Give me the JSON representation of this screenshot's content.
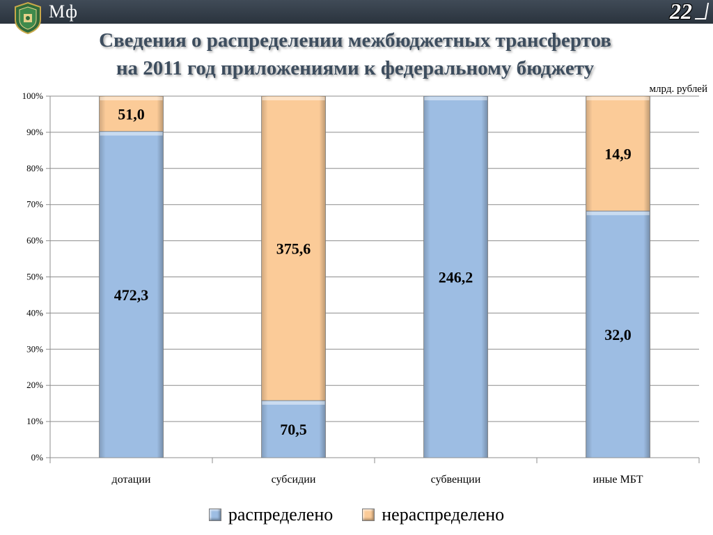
{
  "header": {
    "logo_text": "Мф",
    "page_number": "22"
  },
  "title_lines": [
    "Сведения о распределении межбюджетных трансфертов",
    "на 2011 год приложениями к федеральному бюджету"
  ],
  "unit_label": "млрд. рублей",
  "colors": {
    "distributed": "#9dbde3",
    "undistributed": "#fbcb98"
  },
  "chart_data": {
    "type": "bar",
    "stacked": "percent",
    "categories": [
      "дотации",
      "субсидии",
      "субвенции",
      "иные МБТ"
    ],
    "series": [
      {
        "name": "распределено",
        "values": [
          472.3,
          70.5,
          246.2,
          32.0
        ],
        "labels": [
          "472,3",
          "70,5",
          "246,2",
          "32,0"
        ]
      },
      {
        "name": "нераспределено",
        "values": [
          51.0,
          375.6,
          0,
          14.9
        ],
        "labels": [
          "51,0",
          "375,6",
          "",
          "14,9"
        ]
      }
    ],
    "yticks": [
      "0%",
      "10%",
      "20%",
      "30%",
      "40%",
      "50%",
      "60%",
      "70%",
      "80%",
      "90%",
      "100%"
    ],
    "ylim": [
      0,
      100
    ],
    "grid": true,
    "legend_position": "bottom"
  }
}
